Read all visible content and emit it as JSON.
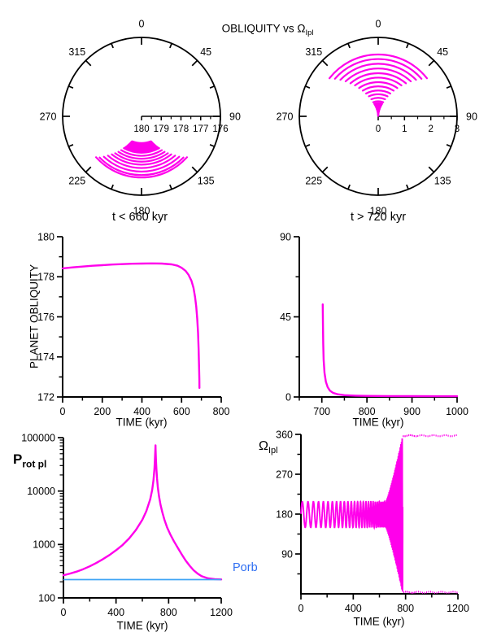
{
  "colors": {
    "curve": "#FF00EB",
    "axis": "#000000",
    "background": "#FFFFFF",
    "porb_line": "#3FA5F5",
    "porb_text": "#2F6FF2"
  },
  "header": {
    "title_prefix": "OBLIQUITY vs ",
    "title_omega": "Ω",
    "title_sub": "Ipl"
  },
  "captions": {
    "left": "t < 660 kyr",
    "right": "t > 720 kyr"
  },
  "labels": {
    "planet_obliquity": "PLANET OBLIQUITY",
    "time_kyr": "TIME (kyr)",
    "prot_main": "P",
    "prot_sub": "rot pl",
    "omega_main": "Ω",
    "omega_sub": "Ipl",
    "porb": "Porb"
  },
  "chart_data": [
    {
      "id": "polar-left",
      "type": "polar",
      "caption": "t < 660 kyr",
      "angular_ticks": [
        0,
        45,
        90,
        135,
        180,
        225,
        270,
        315
      ],
      "radial": {
        "min": 180,
        "max": 176,
        "ticks": [
          180,
          179,
          178,
          177,
          176
        ]
      },
      "arc_center": 180,
      "blob": {
        "v0": 178.62,
        "v1": 178.2,
        "span0": 20,
        "span1": 27,
        "steps": 12,
        "width": 3.5
      },
      "rings": [
        [
          178.15,
          29
        ],
        [
          178.0,
          31
        ],
        [
          177.85,
          33
        ],
        [
          177.7,
          35.5
        ],
        [
          177.55,
          38
        ],
        [
          177.38,
          40.5
        ],
        [
          177.2,
          43
        ],
        [
          177.02,
          45.5
        ],
        [
          176.9,
          48
        ]
      ]
    },
    {
      "id": "polar-right",
      "type": "polar",
      "caption": "t > 720 kyr",
      "title": "OBLIQUITY vs Ω_Ipl",
      "angular_ticks": [
        0,
        45,
        90,
        135,
        180,
        225,
        270,
        315
      ],
      "radial": {
        "min": 0,
        "max": 3,
        "ticks": [
          0,
          1,
          2,
          3
        ]
      },
      "arc_center": 0,
      "rings": [
        [
          2.35,
          52
        ],
        [
          2.18,
          49
        ],
        [
          2.0,
          46
        ],
        [
          1.82,
          43
        ],
        [
          1.64,
          40
        ],
        [
          1.47,
          37
        ],
        [
          1.3,
          34
        ],
        [
          1.14,
          31
        ],
        [
          0.98,
          28
        ],
        [
          0.84,
          25
        ],
        [
          0.7,
          22
        ],
        [
          0.57,
          19.5
        ]
      ],
      "funnel": {
        "v0": 0.5,
        "v1": 0.02,
        "span0": 17,
        "span1": 2,
        "steps": 26,
        "width": 2.4
      }
    },
    {
      "id": "planet-obliquity",
      "type": "line",
      "ylabel": "PLANET OBLIQUITY",
      "xlabel": "TIME (kyr)",
      "xlim": [
        0,
        800
      ],
      "ylim": [
        172,
        180
      ],
      "xticks": {
        "major": [
          0,
          200,
          400,
          600,
          800
        ],
        "minor": [
          100,
          300,
          500,
          700
        ]
      },
      "yticks": {
        "major": [
          172,
          174,
          176,
          178,
          180
        ],
        "minor": [
          173,
          175,
          177,
          179
        ]
      },
      "series": [
        {
          "name": "planet obliquity",
          "width": 2.4,
          "points": [
            [
              0,
              178.42
            ],
            [
              50,
              178.47
            ],
            [
              100,
              178.51
            ],
            [
              150,
              178.55
            ],
            [
              200,
              178.58
            ],
            [
              250,
              178.61
            ],
            [
              300,
              178.63
            ],
            [
              350,
              178.65
            ],
            [
              400,
              178.66
            ],
            [
              450,
              178.67
            ],
            [
              500,
              178.66
            ],
            [
              550,
              178.62
            ],
            [
              580,
              178.55
            ],
            [
              600,
              178.45
            ],
            [
              620,
              178.3
            ],
            [
              635,
              178.1
            ],
            [
              650,
              177.8
            ],
            [
              660,
              177.45
            ],
            [
              668,
              177.0
            ],
            [
              674,
              176.5
            ],
            [
              679,
              175.9
            ],
            [
              683,
              175.2
            ],
            [
              686,
              174.4
            ],
            [
              688,
              173.6
            ],
            [
              689.5,
              172.9
            ],
            [
              690,
              172.45
            ]
          ]
        }
      ]
    },
    {
      "id": "obliquity-late",
      "type": "line",
      "xlabel": "TIME (kyr)",
      "xlim": [
        650,
        1000
      ],
      "ylim": [
        0,
        90
      ],
      "xticks": {
        "major": [
          700,
          800,
          900,
          1000
        ],
        "minor": [
          650,
          750,
          850,
          950
        ]
      },
      "yticks": {
        "major": [
          0,
          45,
          90
        ],
        "minor": [
          22.5,
          67.5
        ]
      },
      "series": [
        {
          "name": "planet obliquity",
          "width": 2.4,
          "points": [
            [
              702,
              52
            ],
            [
              702.5,
              40
            ],
            [
              703,
              30
            ],
            [
              704,
              21
            ],
            [
              706,
              13.5
            ],
            [
              709,
              8.5
            ],
            [
              713,
              5.5
            ],
            [
              718,
              3.5
            ],
            [
              725,
              2.3
            ],
            [
              735,
              1.5
            ],
            [
              750,
              1.0
            ],
            [
              775,
              0.75
            ],
            [
              800,
              0.6
            ],
            [
              850,
              0.5
            ],
            [
              900,
              0.45
            ],
            [
              950,
              0.42
            ],
            [
              1000,
              0.4
            ]
          ]
        }
      ]
    },
    {
      "id": "prot",
      "type": "line",
      "ylog": true,
      "ylabel": "Prot pl",
      "xlabel": "TIME (kyr)",
      "xlim": [
        0,
        1200
      ],
      "ylim": [
        100,
        100000
      ],
      "xticks": {
        "major": [
          0,
          400,
          800,
          1200
        ],
        "minor": [
          200,
          600,
          1000
        ]
      },
      "yticks": {
        "major": [
          100,
          1000,
          10000,
          100000
        ],
        "log_minor": true
      },
      "series": [
        {
          "name": "Prot pl",
          "width": 2.4,
          "points": [
            [
              0,
              265
            ],
            [
              50,
              285
            ],
            [
              100,
              310
            ],
            [
              150,
              345
            ],
            [
              200,
              390
            ],
            [
              250,
              450
            ],
            [
              300,
              530
            ],
            [
              350,
              635
            ],
            [
              400,
              780
            ],
            [
              450,
              980
            ],
            [
              500,
              1300
            ],
            [
              550,
              1850
            ],
            [
              600,
              2900
            ],
            [
              630,
              4200
            ],
            [
              660,
              7000
            ],
            [
              675,
              10500
            ],
            [
              685,
              16000
            ],
            [
              692,
              26000
            ],
            [
              696,
              40000
            ],
            [
              699,
              60000
            ],
            [
              700,
              72000
            ],
            [
              701,
              60000
            ],
            [
              703,
              40000
            ],
            [
              707,
              26000
            ],
            [
              712,
              17000
            ],
            [
              718,
              11500
            ],
            [
              727,
              8000
            ],
            [
              738,
              5600
            ],
            [
              752,
              4000
            ],
            [
              768,
              2900
            ],
            [
              788,
              2100
            ],
            [
              812,
              1550
            ],
            [
              840,
              1150
            ],
            [
              870,
              860
            ],
            [
              900,
              650
            ],
            [
              930,
              500
            ],
            [
              960,
              400
            ],
            [
              990,
              330
            ],
            [
              1020,
              285
            ],
            [
              1050,
              255
            ],
            [
              1100,
              232
            ],
            [
              1150,
              225
            ],
            [
              1200,
              222
            ]
          ]
        },
        {
          "name": "Porb",
          "hline": 220,
          "color": "porb_line",
          "width": 1.8
        }
      ]
    },
    {
      "id": "omega-time",
      "type": "line",
      "ylabel": "Ω_Ipl",
      "xlabel": "TIME (kyr)",
      "xlim": [
        0,
        1200
      ],
      "ylim": [
        0,
        360
      ],
      "xticks": {
        "major": [
          0,
          400,
          800,
          1200
        ],
        "minor": [
          200,
          600,
          1000
        ]
      },
      "yticks": {
        "major": [
          90,
          180,
          270,
          360
        ],
        "minor": [
          45,
          135,
          225,
          315
        ]
      },
      "series": [
        {
          "name": "Omega Ipl libration",
          "width": 1.9,
          "oscillation": {
            "t_start": 0,
            "t_end": 648,
            "step": 0.4,
            "center": 179,
            "amplitude": 29,
            "period_start": 45,
            "period_end": 12,
            "blowup": {
              "t0": 648,
              "t1": 778,
              "period": 5,
              "max_amplitude": 178
            }
          }
        },
        {
          "name": "Omega Ipl circulation bands",
          "width": 2.2,
          "bands": {
            "t0": 778,
            "t1": 1200,
            "top": 357,
            "bottom": 3.5,
            "dash": 8.5,
            "gap": 5.5,
            "dash2": 7,
            "gap2": 8.5,
            "switch": 880
          }
        }
      ]
    }
  ]
}
